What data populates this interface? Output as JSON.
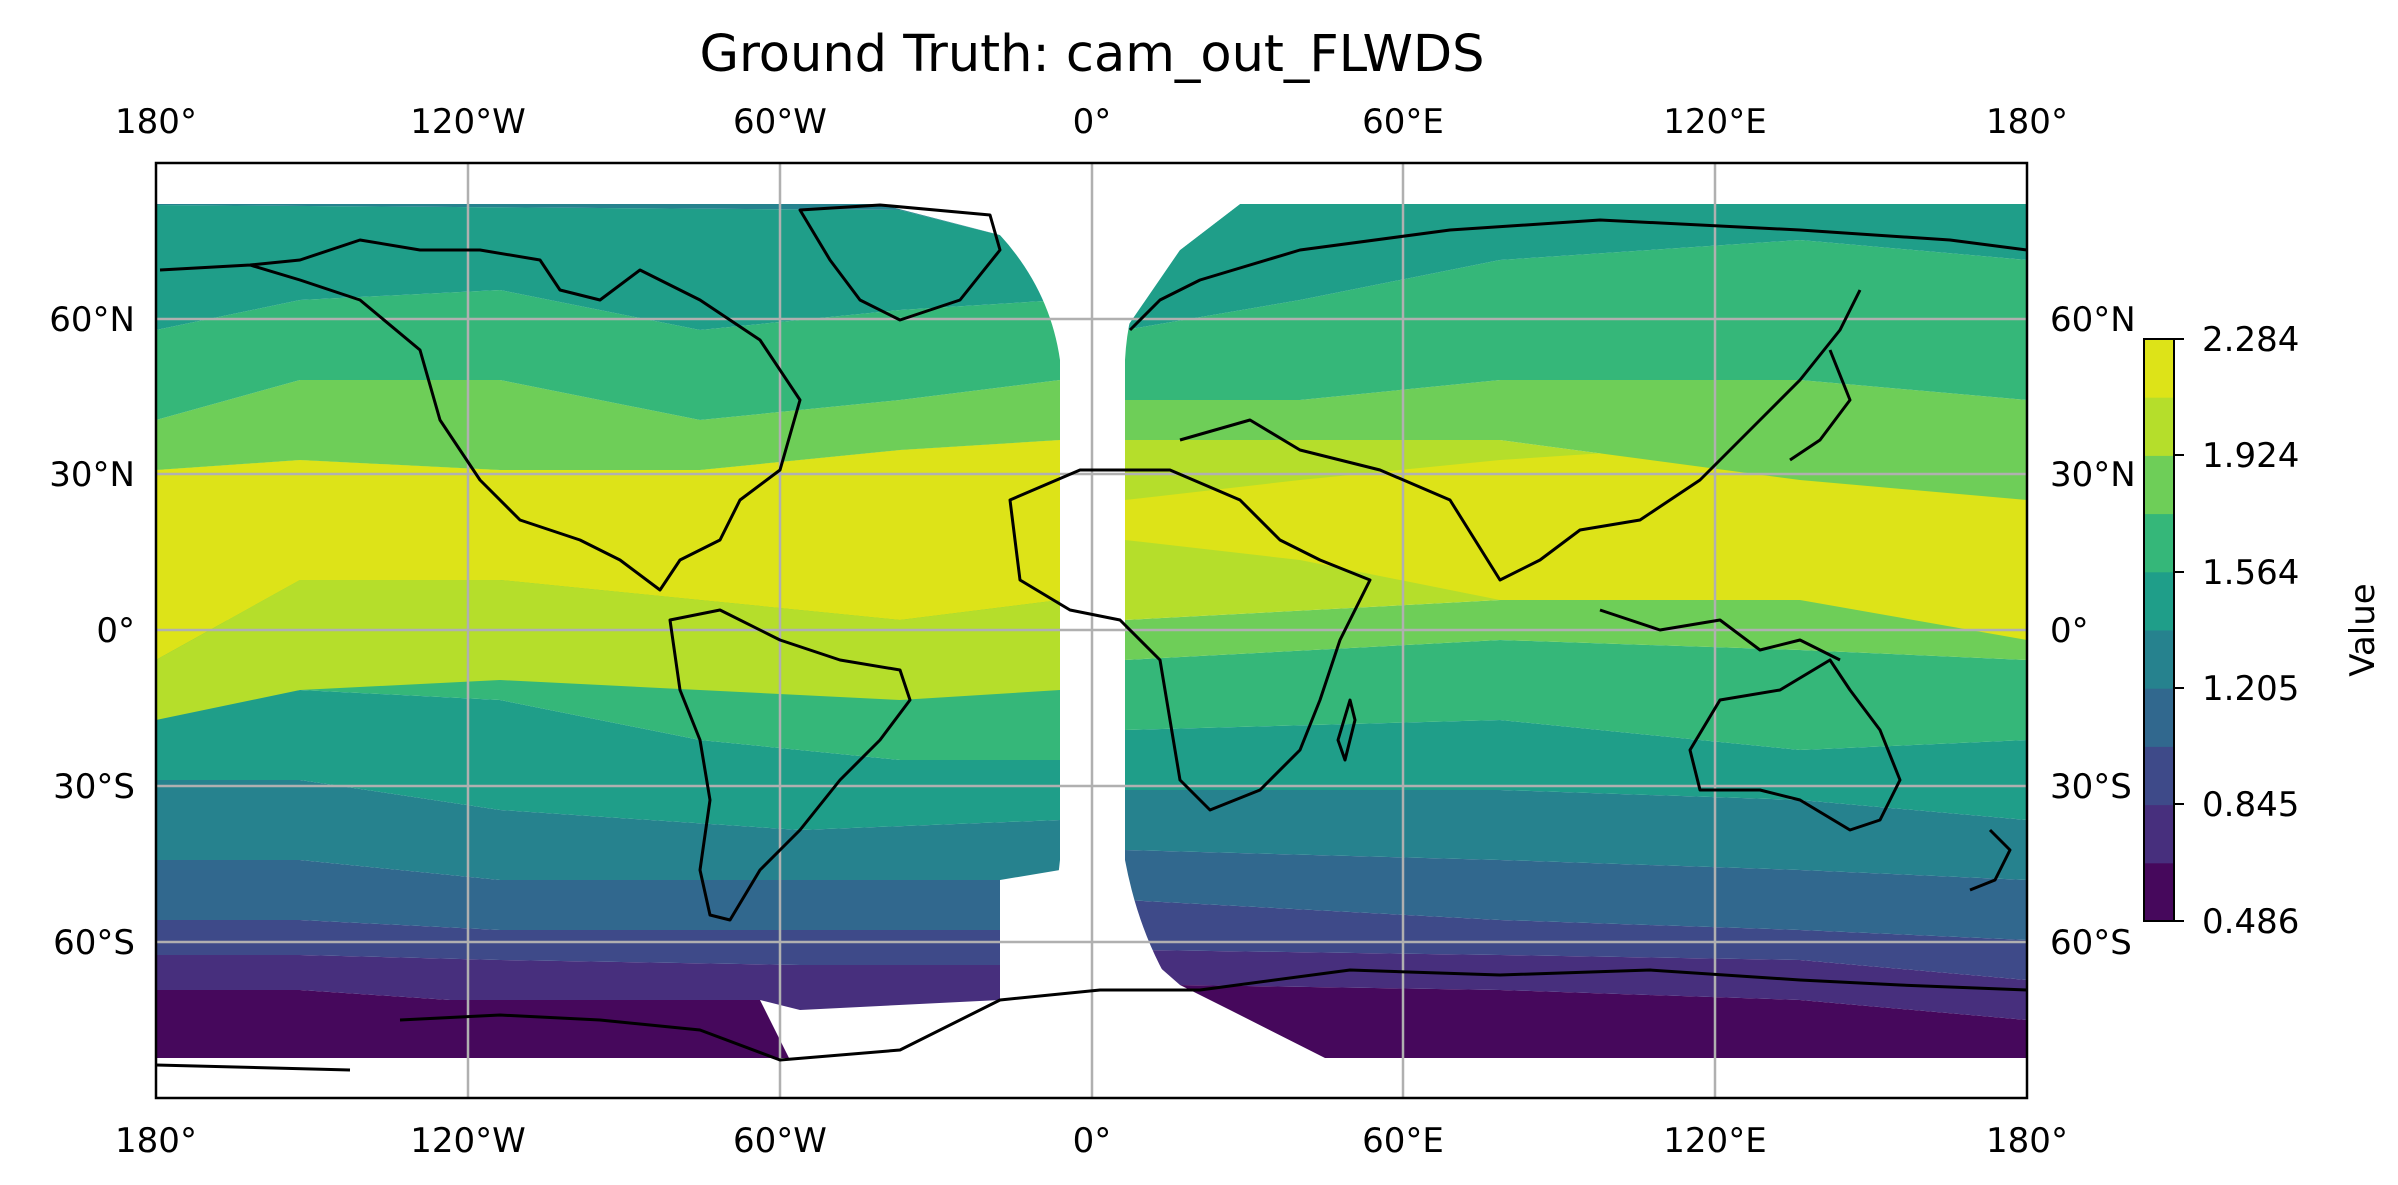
{
  "title": "Ground Truth: cam_out_FLWDS",
  "map": {
    "projection": "PlateCarree",
    "lon_range": [
      -180,
      180
    ],
    "lat_range": [
      -90,
      90
    ],
    "gridlines": true,
    "coastlines": true,
    "colormap": "viridis",
    "top_lon_labels": [
      "180°",
      "120°W",
      "60°W",
      "0°",
      "60°E",
      "120°E",
      "180°"
    ],
    "bottom_lon_labels": [
      "180°",
      "120°W",
      "60°W",
      "0°",
      "60°E",
      "120°E",
      "180°"
    ],
    "left_lat_labels": [
      "60°N",
      "30°N",
      "0°",
      "30°S",
      "60°S"
    ],
    "right_lat_labels": [
      "60°N",
      "30°N",
      "0°",
      "30°S",
      "60°S"
    ]
  },
  "colorbar": {
    "label": "Value",
    "min": 0.486,
    "max": 2.284,
    "tick_labels": [
      "2.284",
      "1.924",
      "1.564",
      "1.205",
      "0.845",
      "0.486"
    ],
    "levels": 10,
    "colors": [
      "#46085c",
      "#472f7d",
      "#3e4a89",
      "#31688e",
      "#26828e",
      "#1f9e89",
      "#35b779",
      "#6ece58",
      "#b5de2b",
      "#dde318"
    ]
  }
}
